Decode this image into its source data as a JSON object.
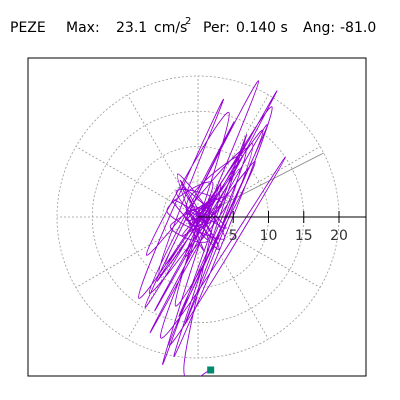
{
  "header": {
    "station": "PEZE",
    "max_label": "Max:",
    "max_value": "23.1",
    "max_unit": "cm/s",
    "max_unit_exp": "2",
    "per_label": "Per:",
    "per_value": "0.140 s",
    "ang_label": "Ang:",
    "ang_value": "-81.0"
  },
  "chart_data": {
    "type": "polar-particle-motion",
    "title": "",
    "radial_ticks": [
      5,
      10,
      15,
      20
    ],
    "radial_tick_labels": [
      "5",
      "10",
      "15",
      "20"
    ],
    "rmax": 25,
    "grid": true,
    "grid_circles": [
      5,
      10,
      15,
      20
    ],
    "grid_spokes_deg": [
      0,
      30,
      60,
      90,
      120,
      150,
      180,
      210,
      240,
      270,
      300,
      330
    ],
    "max_amplitude": 23.1,
    "angle_deg": -81.0,
    "ticked_axis_angle_deg": 0,
    "angle_indicator_deg": 27,
    "trace_color": "#9400d3",
    "marker_color": "#008b6e",
    "marker_point": {
      "x": 1.8,
      "y": -21.7
    },
    "series": [
      {
        "x": [
          0,
          1.2,
          -0.8,
          1.5,
          -1.6,
          0.9,
          -0.4,
          2.0,
          -1.1,
          0.3,
          -2.0,
          1.6,
          0.6,
          -1.3,
          1.8,
          -0.6,
          0.2,
          -1.7,
          1.0,
          -0.2,
          2.6,
          -2.3,
          3.4,
          -3.1,
          2.8,
          -2.2,
          4.0,
          -3.6,
          3.0,
          -2.5,
          1.4,
          -3.9,
          4.6,
          -1.8,
          2.1,
          -4.4,
          3.8,
          -2.9,
          0.8,
          -1.5,
          6.2,
          -5.8,
          7.4,
          -4.6,
          5.1,
          -6.9,
          8.1,
          -3.2,
          4.4,
          -7.3,
          6.8,
          -2.7,
          9.2,
          -5.5,
          3.6,
          -8.4,
          7.7,
          -1.9,
          5.9,
          -6.1,
          11.2,
          -6.8,
          9.8,
          -4.1,
          12.4,
          -5.3,
          8.6,
          -7.5,
          10.5,
          -3.4,
          6.9,
          -5.0,
          3.2,
          -2.0,
          1.8
        ],
        "y": [
          0,
          -0.9,
          1.4,
          0.6,
          -0.5,
          1.8,
          -1.6,
          -0.3,
          0.9,
          -1.9,
          0.4,
          1.3,
          -1.0,
          -0.8,
          1.7,
          0.2,
          -1.4,
          1.1,
          -0.6,
          0.5,
          3.1,
          -2.7,
          1.9,
          3.6,
          -3.8,
          4.2,
          -1.6,
          2.4,
          -4.6,
          5.2,
          -3.3,
          -1.2,
          2.9,
          -5.6,
          4.8,
          0.8,
          -3.0,
          6.1,
          -4.7,
          2.2,
          8.4,
          -9.1,
          11.2,
          -6.7,
          13.5,
          -10.8,
          7.9,
          -12.6,
          14.8,
          -5.4,
          9.6,
          -14.1,
          12.3,
          -8.2,
          16.7,
          -11.5,
          10.4,
          -15.3,
          6.8,
          -13.2,
          17.9,
          -16.4,
          13.1,
          -18.2,
          8.5,
          -17.1,
          19.3,
          -12.8,
          15.6,
          -19.8,
          11.7,
          -20.9,
          4.6,
          -21.2,
          -21.7
        ]
      }
    ]
  }
}
